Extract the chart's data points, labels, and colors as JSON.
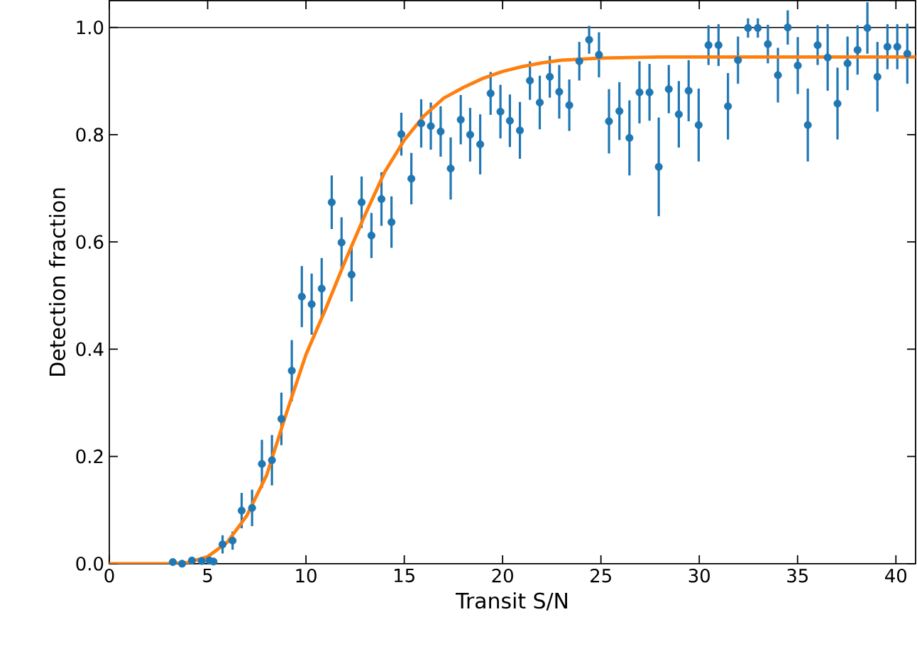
{
  "chart_data": {
    "type": "scatter",
    "xlabel": "Transit S/N",
    "ylabel": "Detection fraction",
    "xlim": [
      0,
      41
    ],
    "ylim": [
      0,
      1.05
    ],
    "xticks": [
      0,
      5,
      10,
      15,
      20,
      25,
      30,
      35,
      40
    ],
    "yticks": [
      {
        "value": 0,
        "label": "0.0"
      },
      {
        "value": 0.2,
        "label": "0.2"
      },
      {
        "value": 0.4,
        "label": "0.4"
      },
      {
        "value": 0.6,
        "label": "0.6"
      },
      {
        "value": 0.8,
        "label": "0.8"
      },
      {
        "value": 1.0,
        "label": "1.0"
      }
    ],
    "grid": false,
    "ref_lines": [
      {
        "axis": "y",
        "value": 1.0,
        "color": "#000000"
      }
    ],
    "series": [
      {
        "color": "#1f77b4",
        "marker": "circle",
        "x": [
          3.23,
          3.7,
          4.2,
          4.7,
          5.09,
          5.3,
          5.76,
          6.27,
          6.73,
          7.26,
          7.76,
          8.27,
          8.75,
          9.28,
          9.79,
          10.29,
          10.8,
          11.31,
          11.81,
          12.32,
          12.83,
          13.33,
          13.84,
          14.35,
          14.85,
          15.36,
          15.86,
          16.35,
          16.85,
          17.36,
          17.87,
          18.35,
          18.86,
          19.39,
          19.89,
          20.37,
          20.88,
          21.39,
          21.89,
          22.4,
          22.88,
          23.39,
          23.9,
          24.4,
          24.9,
          25.41,
          25.94,
          26.45,
          26.96,
          27.47,
          27.94,
          28.45,
          28.96,
          29.46,
          29.97,
          30.47,
          30.98,
          31.46,
          31.97,
          32.48,
          32.98,
          33.49,
          34.0,
          34.5,
          35.01,
          35.52,
          36.02,
          36.53,
          37.03,
          37.54,
          38.05,
          38.55,
          39.06,
          39.57,
          40.07,
          40.58
        ],
        "values": [
          0.003,
          0.0,
          0.006,
          0.005,
          0.006,
          0.004,
          0.036,
          0.043,
          0.099,
          0.104,
          0.186,
          0.193,
          0.27,
          0.36,
          0.498,
          0.484,
          0.513,
          0.674,
          0.599,
          0.539,
          0.674,
          0.612,
          0.68,
          0.637,
          0.801,
          0.718,
          0.821,
          0.816,
          0.806,
          0.737,
          0.828,
          0.8,
          0.782,
          0.877,
          0.843,
          0.826,
          0.808,
          0.901,
          0.86,
          0.908,
          0.88,
          0.855,
          0.937,
          0.977,
          0.949,
          0.825,
          0.844,
          0.794,
          0.879,
          0.879,
          0.74,
          0.885,
          0.838,
          0.882,
          0.818,
          0.967,
          0.967,
          0.853,
          0.939,
          0.999,
          0.999,
          0.969,
          0.911,
          1.0,
          0.929,
          0.818,
          0.967,
          0.944,
          0.858,
          0.933,
          0.958,
          0.999,
          0.908,
          0.964,
          0.964,
          0.951
        ],
        "errors": [
          0.003,
          0.003,
          0.005,
          0.005,
          0.006,
          0.004,
          0.017,
          0.017,
          0.033,
          0.034,
          0.045,
          0.047,
          0.049,
          0.057,
          0.057,
          0.057,
          0.057,
          0.05,
          0.047,
          0.05,
          0.048,
          0.042,
          0.05,
          0.048,
          0.04,
          0.048,
          0.045,
          0.044,
          0.047,
          0.058,
          0.046,
          0.05,
          0.056,
          0.04,
          0.05,
          0.049,
          0.053,
          0.036,
          0.05,
          0.039,
          0.05,
          0.048,
          0.036,
          0.026,
          0.042,
          0.06,
          0.054,
          0.07,
          0.058,
          0.053,
          0.092,
          0.045,
          0.062,
          0.057,
          0.068,
          0.037,
          0.039,
          0.062,
          0.044,
          0.018,
          0.018,
          0.036,
          0.051,
          0.032,
          0.053,
          0.068,
          0.037,
          0.062,
          0.067,
          0.05,
          0.046,
          0.048,
          0.065,
          0.042,
          0.042,
          0.056
        ]
      },
      {
        "type": "line",
        "color": "#ff7f0e",
        "marker": "none",
        "x": [
          0,
          3,
          4,
          5,
          6,
          7,
          8,
          9,
          10,
          11,
          12,
          13,
          14,
          15,
          16,
          17,
          18,
          19,
          20,
          21,
          22,
          23,
          25,
          28,
          41
        ],
        "values": [
          0,
          0,
          0.002,
          0.013,
          0.04,
          0.09,
          0.165,
          0.28,
          0.39,
          0.475,
          0.565,
          0.65,
          0.73,
          0.79,
          0.835,
          0.868,
          0.888,
          0.905,
          0.918,
          0.927,
          0.934,
          0.939,
          0.943,
          0.945,
          0.945
        ]
      }
    ]
  }
}
